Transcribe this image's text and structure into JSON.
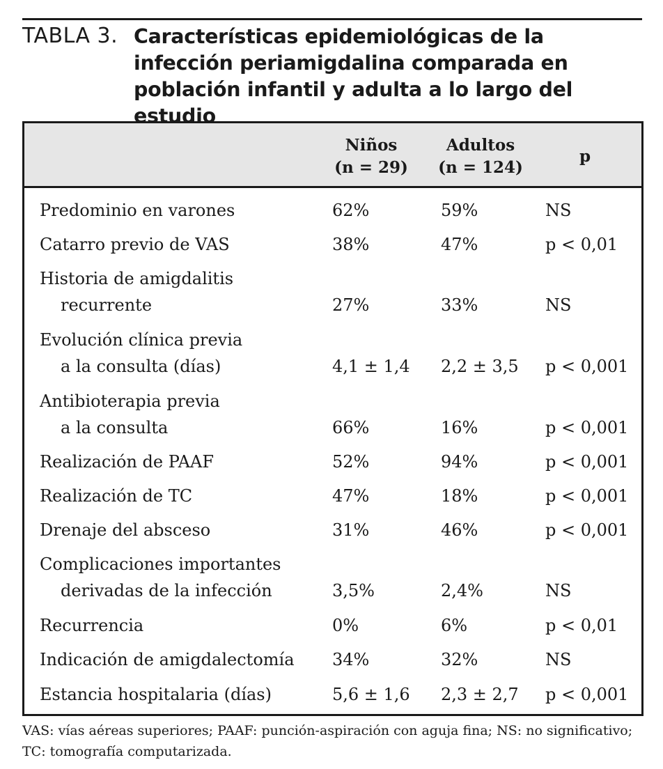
{
  "caption": {
    "label": "TABLA 3.",
    "title": "Características epidemiológicas de la infección periamigdalina comparada en población infantil y adulta a lo largo del estudio"
  },
  "header": {
    "ninos_line1": "Niños",
    "ninos_line2": "(n = 29)",
    "adultos_line1": "Adultos",
    "adultos_line2": "(n = 124)",
    "p": "p"
  },
  "rows": [
    {
      "label": "Predominio en varones",
      "label2": "",
      "ninos": "62%",
      "adultos": "59%",
      "p": "NS"
    },
    {
      "label": "Catarro previo de VAS",
      "label2": "",
      "ninos": "38%",
      "adultos": "47%",
      "p": "p < 0,01"
    },
    {
      "label": "Historia de amigdalitis",
      "label2": "recurrente",
      "ninos": "27%",
      "adultos": "33%",
      "p": "NS"
    },
    {
      "label": "Evolución clínica previa",
      "label2": "a la consulta (días)",
      "ninos": "4,1 ± 1,4",
      "adultos": "2,2 ± 3,5",
      "p": "p < 0,001"
    },
    {
      "label": "Antibioterapia previa",
      "label2": "a la consulta",
      "ninos": "66%",
      "adultos": "16%",
      "p": "p < 0,001"
    },
    {
      "label": "Realización de PAAF",
      "label2": "",
      "ninos": "52%",
      "adultos": "94%",
      "p": "p < 0,001"
    },
    {
      "label": "Realización de TC",
      "label2": "",
      "ninos": "47%",
      "adultos": "18%",
      "p": "p < 0,001"
    },
    {
      "label": "Drenaje del absceso",
      "label2": "",
      "ninos": "31%",
      "adultos": "46%",
      "p": "p < 0,001"
    },
    {
      "label": "Complicaciones importantes",
      "label2": "derivadas de la infección",
      "ninos": "3,5%",
      "adultos": "2,4%",
      "p": "NS"
    },
    {
      "label": "Recurrencia",
      "label2": "",
      "ninos": "0%",
      "adultos": "6%",
      "p": "p < 0,01"
    },
    {
      "label": "Indicación de amigdalectomía",
      "label2": "",
      "ninos": "34%",
      "adultos": "32%",
      "p": "NS"
    },
    {
      "label": "Estancia hospitalaria (días)",
      "label2": "",
      "ninos": "5,6 ± 1,6",
      "adultos": "2,3 ± 2,7",
      "p": "p < 0,001"
    }
  ],
  "footnote": "VAS: vías aéreas superiores; PAAF: punción-aspiración con aguja fina; NS: no significativo; TC: tomografía computarizada."
}
